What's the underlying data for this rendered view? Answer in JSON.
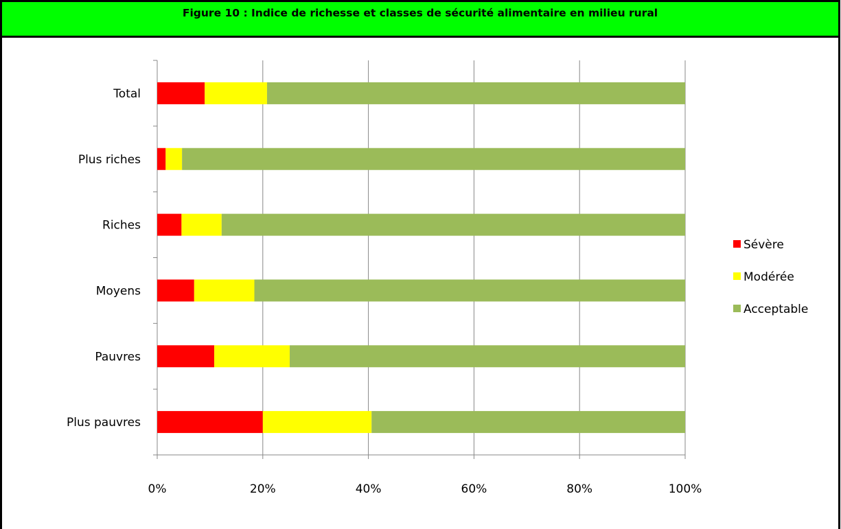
{
  "figure": {
    "title": "Figure 10 : Indice de richesse et classes de sécurité alimentaire en milieu rural"
  },
  "chart_data": {
    "type": "bar",
    "orientation": "horizontal",
    "stacked": "percent",
    "categories": [
      "Total",
      "Plus riches",
      "Riches",
      "Moyens",
      "Pauvres",
      "Plus pauvres"
    ],
    "series": [
      {
        "name": "Sévère",
        "color": "#ff0000",
        "values": [
          9.0,
          1.6,
          4.6,
          7.0,
          10.8,
          20.0
        ]
      },
      {
        "name": "Modérée",
        "color": "#ffff00",
        "values": [
          11.8,
          3.1,
          7.6,
          11.4,
          14.3,
          20.6
        ]
      },
      {
        "name": "Acceptable",
        "color": "#9bbb59",
        "values": [
          79.2,
          95.3,
          87.8,
          81.6,
          74.9,
          59.4
        ]
      }
    ],
    "xticks": [
      "0%",
      "20%",
      "40%",
      "60%",
      "80%",
      "100%"
    ],
    "xlim": [
      0,
      100
    ],
    "grid": true,
    "legend": "right"
  }
}
